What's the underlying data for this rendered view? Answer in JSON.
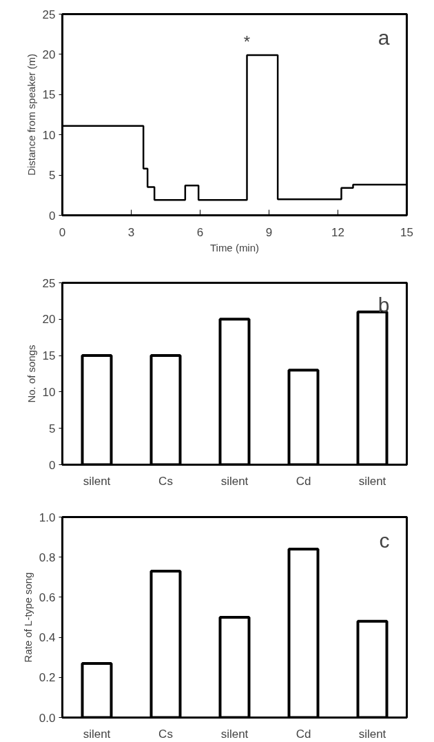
{
  "chart_data": [
    {
      "type": "step",
      "xlabel": "Time (min)",
      "ylabel": "Distance from speaker (m)",
      "x": [
        0,
        3.53,
        3.71,
        4.01,
        5.35,
        5.93,
        8.04,
        9.38,
        12.15,
        12.66,
        15
      ],
      "series": [
        {
          "color": "#000000",
          "values": [
            11.1,
            5.8,
            3.5,
            1.9,
            3.7,
            1.9,
            19.9,
            2.0,
            3.4,
            3.8,
            3.8
          ]
        }
      ],
      "xlim": [
        0,
        15
      ],
      "xticks": [
        0,
        3,
        6,
        9,
        12,
        15
      ],
      "ylim": [
        0,
        25
      ],
      "yticks": [
        0,
        5,
        10,
        15,
        20,
        25
      ],
      "grid": false,
      "annotations": [
        "a",
        "*"
      ]
    },
    {
      "type": "bar",
      "ylabel": "No. of songs",
      "categories": [
        "silent",
        "Cs",
        "silent",
        "Cd",
        "silent"
      ],
      "values": [
        15,
        15,
        20,
        13,
        21
      ],
      "color": "#ffffff",
      "ylim": [
        0,
        25
      ],
      "yticks": [
        0,
        5,
        10,
        15,
        20,
        25
      ],
      "grid": false,
      "annotations": [
        "b"
      ]
    },
    {
      "type": "bar",
      "ylabel": "Rate of L-type song",
      "categories": [
        "silent",
        "Cs",
        "silent",
        "Cd",
        "silent"
      ],
      "values": [
        0.27,
        0.73,
        0.5,
        0.84,
        0.48
      ],
      "color": "#ffffff",
      "ylim": [
        0,
        1.0
      ],
      "yticks": [
        {
          "value": 0,
          "label": "0.0"
        },
        {
          "value": 0.2,
          "label": "0.2"
        },
        {
          "value": 0.4,
          "label": "0.4"
        },
        {
          "value": 0.6,
          "label": "0.6"
        },
        {
          "value": 0.8,
          "label": "0.8"
        },
        {
          "value": 1.0,
          "label": "1.0"
        }
      ],
      "grid": false,
      "annotations": [
        "c"
      ]
    }
  ]
}
